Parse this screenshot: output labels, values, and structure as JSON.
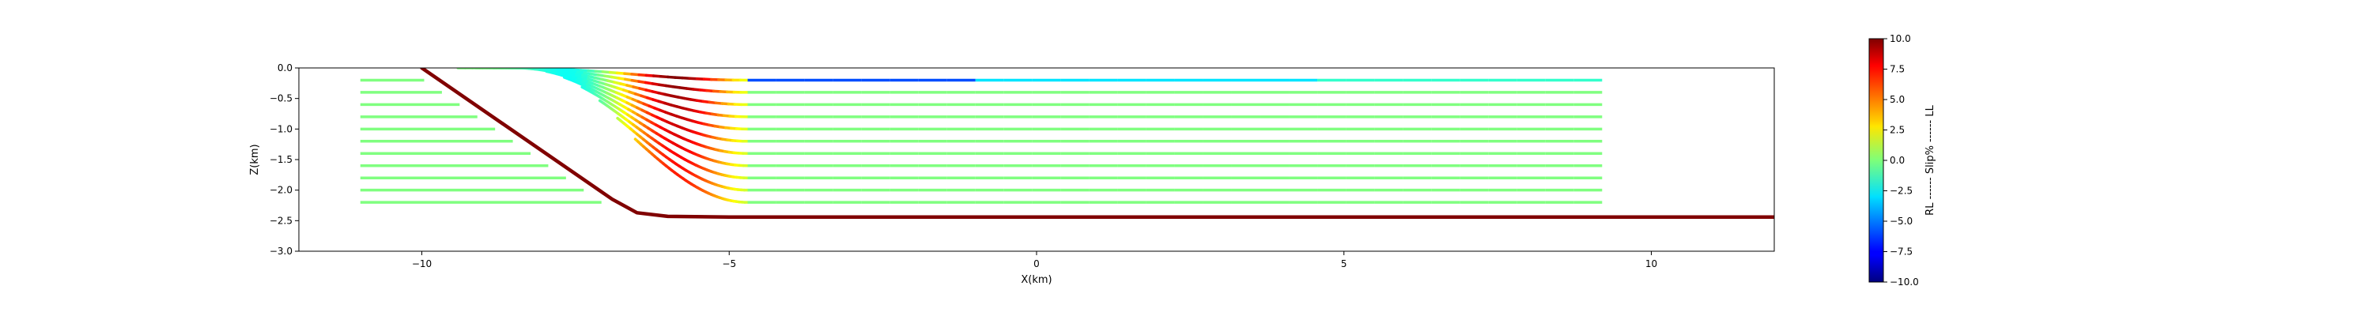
{
  "chart_data": {
    "type": "line",
    "title": "",
    "xlabel": "X(km)",
    "ylabel": "Z(km)",
    "xlim": [
      -12,
      12
    ],
    "ylim": [
      -3.0,
      0.0
    ],
    "xticks": [
      -10,
      -5,
      0,
      5,
      10
    ],
    "xtick_labels": [
      "−10",
      "−5",
      "0",
      "5",
      "10"
    ],
    "yticks": [
      0.0,
      -0.5,
      -1.0,
      -1.5,
      -2.0,
      -2.5,
      -3.0
    ],
    "ytick_labels": [
      "0.0",
      "−0.5",
      "−1.0",
      "−1.5",
      "−2.0",
      "−2.5",
      "−3.0"
    ],
    "grid": false,
    "fault": {
      "color": "#800000",
      "points": [
        [
          -10,
          0.0
        ],
        [
          -6.9,
          -2.15
        ],
        [
          -6.5,
          -2.37
        ],
        [
          -6.0,
          -2.43
        ],
        [
          -5.0,
          -2.44
        ],
        [
          12,
          -2.44
        ]
      ]
    },
    "layer_depths": [
      -0.2,
      -0.4,
      -0.6,
      -0.8,
      -1.0,
      -1.2,
      -1.4,
      -1.6,
      -1.8,
      -2.0,
      -2.2
    ],
    "layer_geometry": {
      "left_x_start": -11.0,
      "right_x_end": 9.2,
      "flat_slip_value": 0.0,
      "top_layer_right_slip": [
        -6,
        -3,
        -1.5
      ],
      "bend_segments": [
        [
          -9,
          -7.5
        ],
        [
          -7.5,
          -6.2
        ],
        [
          -6.2,
          -5.2
        ],
        [
          -5.2,
          -4.7
        ]
      ]
    },
    "colorbar": {
      "label": "RL ------ Slip% ------ LL",
      "vmin": -10.0,
      "vmax": 10.0,
      "ticks": [
        10.0,
        7.5,
        5.0,
        2.5,
        0.0,
        -2.5,
        -5.0,
        -7.5,
        -10.0
      ],
      "tick_labels": [
        "10.0",
        "7.5",
        "5.0",
        "2.5",
        "0.0",
        "−2.5",
        "−5.0",
        "−7.5",
        "−10.0"
      ],
      "colormap": "jet"
    }
  }
}
